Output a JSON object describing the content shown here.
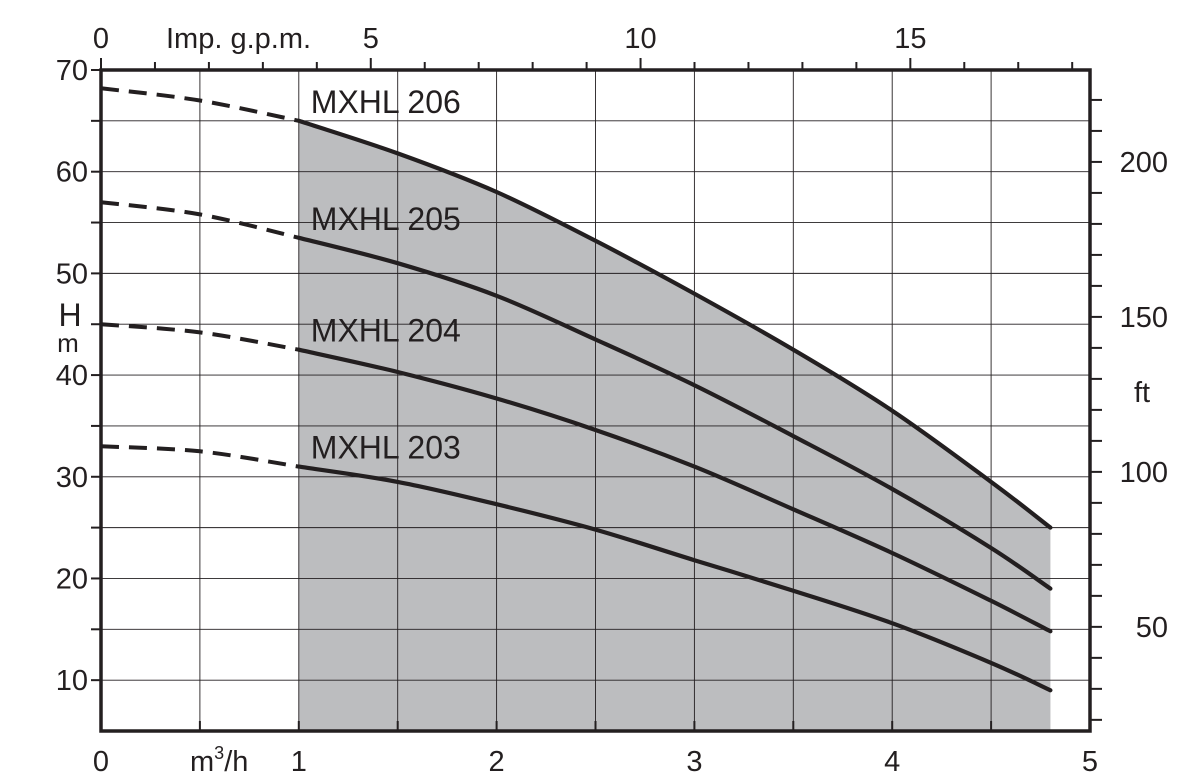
{
  "chart_data": {
    "type": "line",
    "x_unit": "m³/h",
    "x_unit_parts": {
      "base": "m",
      "sup": "3",
      "rest": "/h"
    },
    "y_unit_parts": {
      "big": "H",
      "small": "m"
    },
    "top_axis_label": "Imp. g.p.m.",
    "right_axis_label": "ft",
    "xlim": [
      0,
      5
    ],
    "ylim": [
      5,
      70
    ],
    "x_ticks": [
      "0",
      "1",
      "2",
      "3",
      "4",
      "5"
    ],
    "y_ticks": [
      "10",
      "20",
      "30",
      "40",
      "50",
      "60",
      "70"
    ],
    "top_ticks": [
      "0",
      "5",
      "10",
      "15"
    ],
    "right_ticks": [
      "50",
      "100",
      "150",
      "200"
    ],
    "operating_range": [
      1,
      4.8
    ],
    "shade_color": "#bcbdbf",
    "line_color": "#231f20",
    "series": [
      {
        "name": "MXHL 206",
        "x": [
          0,
          0.5,
          1,
          1.5,
          2,
          2.5,
          3,
          3.5,
          4,
          4.5,
          4.8
        ],
        "y": [
          68.2,
          67,
          65,
          61.8,
          58,
          53.2,
          48,
          42.5,
          36.5,
          29.5,
          25
        ]
      },
      {
        "name": "MXHL 205",
        "x": [
          0,
          0.5,
          1,
          1.5,
          2,
          2.5,
          3,
          3.5,
          4,
          4.5,
          4.8
        ],
        "y": [
          57,
          55.8,
          53.5,
          51,
          47.8,
          43.5,
          39,
          34,
          28.8,
          23,
          19
        ]
      },
      {
        "name": "MXHL 204",
        "x": [
          0,
          0.5,
          1,
          1.5,
          2,
          2.5,
          3,
          3.5,
          4,
          4.5,
          4.8
        ],
        "y": [
          45,
          44.2,
          42.5,
          40.3,
          37.7,
          34.6,
          31,
          26.8,
          22.5,
          17.8,
          14.8
        ]
      },
      {
        "name": "MXHL 203",
        "x": [
          0,
          0.5,
          1,
          1.5,
          2,
          2.5,
          3,
          3.5,
          4,
          4.5,
          4.8
        ],
        "y": [
          33,
          32.5,
          31,
          29.5,
          27.3,
          24.8,
          21.8,
          18.8,
          15.6,
          11.7,
          9
        ]
      }
    ]
  }
}
